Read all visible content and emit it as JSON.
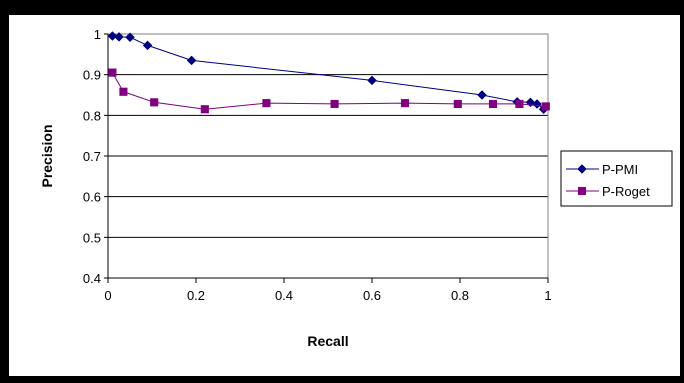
{
  "chart_data": {
    "type": "line",
    "title": "",
    "xlabel": "Recall",
    "ylabel": "Precision",
    "xlim": [
      0,
      1
    ],
    "ylim": [
      0.4,
      1
    ],
    "x_ticks": [
      "0",
      "0.2",
      "0.4",
      "0.6",
      "0.8",
      "1"
    ],
    "y_ticks": [
      "0.4",
      "0.5",
      "0.6",
      "0.7",
      "0.8",
      "0.9",
      "1"
    ],
    "grid": "horizontal",
    "legend_position": "right",
    "series": [
      {
        "name": "P-PMI",
        "color": "#000080",
        "marker": "diamond",
        "x": [
          0.01,
          0.025,
          0.05,
          0.09,
          0.19,
          0.6,
          0.85,
          0.93,
          0.96,
          0.975,
          0.99
        ],
        "y": [
          0.995,
          0.993,
          0.992,
          0.972,
          0.935,
          0.886,
          0.85,
          0.833,
          0.832,
          0.828,
          0.815
        ]
      },
      {
        "name": "P-Roget",
        "color": "#800080",
        "marker": "square",
        "x": [
          0.01,
          0.035,
          0.105,
          0.22,
          0.36,
          0.515,
          0.675,
          0.795,
          0.875,
          0.935,
          0.995
        ],
        "y": [
          0.905,
          0.858,
          0.832,
          0.815,
          0.83,
          0.828,
          0.83,
          0.828,
          0.828,
          0.828,
          0.822
        ]
      }
    ]
  }
}
